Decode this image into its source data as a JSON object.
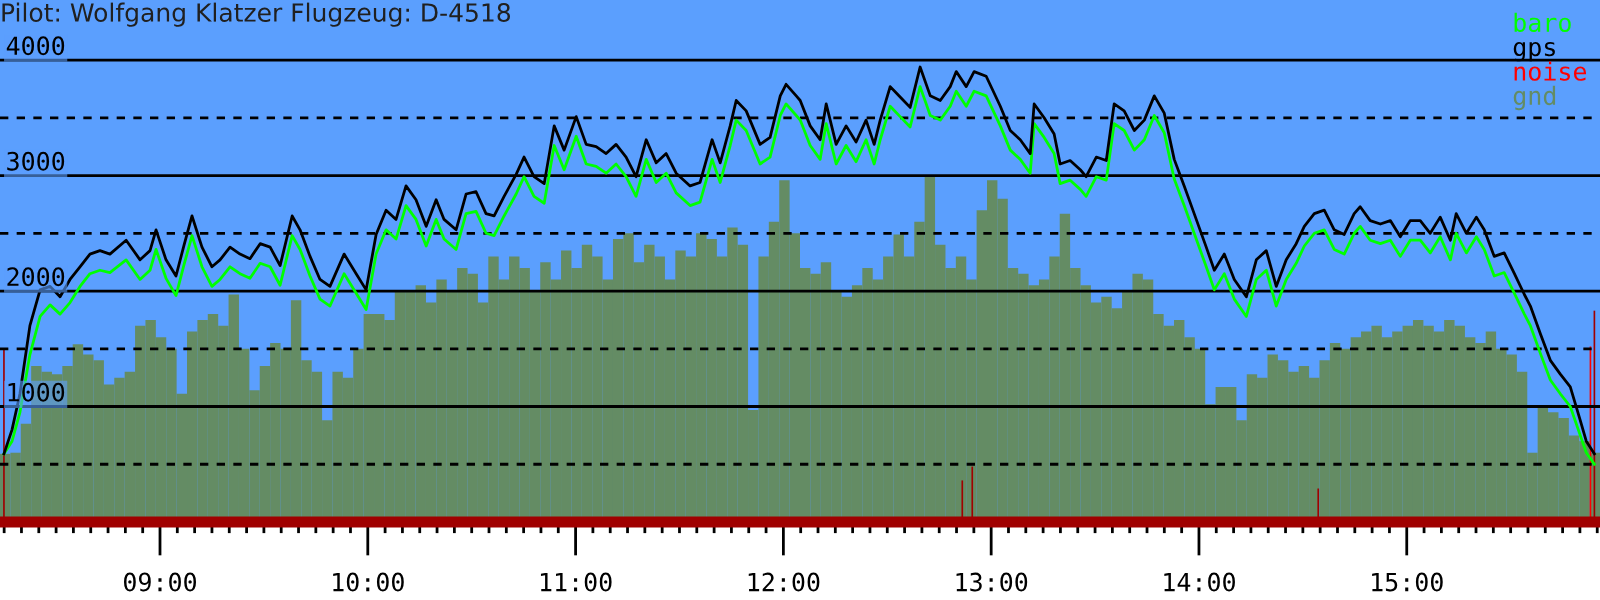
{
  "chart_data": {
    "type": "line",
    "title": "Pilot: Wolfgang Klatzer Flugzeug: D-4518",
    "ylim": [
      0,
      4520
    ],
    "yticks": [
      {
        "value": 500,
        "label": null
      },
      1000,
      {
        "value": 1500,
        "label": null
      },
      2000,
      {
        "value": 2500,
        "label": null
      },
      3000,
      {
        "value": 3500,
        "label": null
      },
      4000
    ],
    "xlim": [
      8.23,
      15.93
    ],
    "xticks": [
      {
        "value": 8.25,
        "label": null
      },
      {
        "value": 8.3333,
        "label": null
      },
      {
        "value": 8.4167,
        "label": null
      },
      {
        "value": 8.5,
        "label": null
      },
      {
        "value": 8.5833,
        "label": null
      },
      {
        "value": 8.6667,
        "label": null
      },
      {
        "value": 8.75,
        "label": null
      },
      {
        "value": 8.8333,
        "label": null
      },
      {
        "value": 8.9167,
        "label": null
      },
      {
        "value": 9,
        "label": "09:00"
      },
      {
        "value": 9.0833,
        "label": null
      },
      {
        "value": 9.1667,
        "label": null
      },
      {
        "value": 9.25,
        "label": null
      },
      {
        "value": 9.3333,
        "label": null
      },
      {
        "value": 9.4167,
        "label": null
      },
      {
        "value": 9.5,
        "label": null
      },
      {
        "value": 9.5833,
        "label": null
      },
      {
        "value": 9.6667,
        "label": null
      },
      {
        "value": 9.75,
        "label": null
      },
      {
        "value": 9.8333,
        "label": null
      },
      {
        "value": 9.9167,
        "label": null
      },
      {
        "value": 10,
        "label": "10:00"
      },
      {
        "value": 10.0833,
        "label": null
      },
      {
        "value": 10.1667,
        "label": null
      },
      {
        "value": 10.25,
        "label": null
      },
      {
        "value": 10.3333,
        "label": null
      },
      {
        "value": 10.4167,
        "label": null
      },
      {
        "value": 10.5,
        "label": null
      },
      {
        "value": 10.5833,
        "label": null
      },
      {
        "value": 10.6667,
        "label": null
      },
      {
        "value": 10.75,
        "label": null
      },
      {
        "value": 10.8333,
        "label": null
      },
      {
        "value": 10.9167,
        "label": null
      },
      {
        "value": 11,
        "label": "11:00"
      },
      {
        "value": 11.0833,
        "label": null
      },
      {
        "value": 11.1667,
        "label": null
      },
      {
        "value": 11.25,
        "label": null
      },
      {
        "value": 11.3333,
        "label": null
      },
      {
        "value": 11.4167,
        "label": null
      },
      {
        "value": 11.5,
        "label": null
      },
      {
        "value": 11.5833,
        "label": null
      },
      {
        "value": 11.6667,
        "label": null
      },
      {
        "value": 11.75,
        "label": null
      },
      {
        "value": 11.8333,
        "label": null
      },
      {
        "value": 11.9167,
        "label": null
      },
      {
        "value": 12,
        "label": "12:00"
      },
      {
        "value": 12.0833,
        "label": null
      },
      {
        "value": 12.1667,
        "label": null
      },
      {
        "value": 12.25,
        "label": null
      },
      {
        "value": 12.3333,
        "label": null
      },
      {
        "value": 12.4167,
        "label": null
      },
      {
        "value": 12.5,
        "label": null
      },
      {
        "value": 12.5833,
        "label": null
      },
      {
        "value": 12.6667,
        "label": null
      },
      {
        "value": 12.75,
        "label": null
      },
      {
        "value": 12.8333,
        "label": null
      },
      {
        "value": 12.9167,
        "label": null
      },
      {
        "value": 13,
        "label": "13:00"
      },
      {
        "value": 13.0833,
        "label": null
      },
      {
        "value": 13.1667,
        "label": null
      },
      {
        "value": 13.25,
        "label": null
      },
      {
        "value": 13.3333,
        "label": null
      },
      {
        "value": 13.4167,
        "label": null
      },
      {
        "value": 13.5,
        "label": null
      },
      {
        "value": 13.5833,
        "label": null
      },
      {
        "value": 13.6667,
        "label": null
      },
      {
        "value": 13.75,
        "label": null
      },
      {
        "value": 13.8333,
        "label": null
      },
      {
        "value": 13.9167,
        "label": null
      },
      {
        "value": 14,
        "label": "14:00"
      },
      {
        "value": 14.0833,
        "label": null
      },
      {
        "value": 14.1667,
        "label": null
      },
      {
        "value": 14.25,
        "label": null
      },
      {
        "value": 14.3333,
        "label": null
      },
      {
        "value": 14.4167,
        "label": null
      },
      {
        "value": 14.5,
        "label": null
      },
      {
        "value": 14.5833,
        "label": null
      },
      {
        "value": 14.6667,
        "label": null
      },
      {
        "value": 14.75,
        "label": null
      },
      {
        "value": 14.8333,
        "label": null
      },
      {
        "value": 14.9167,
        "label": null
      },
      {
        "value": 15,
        "label": "15:00"
      },
      {
        "value": 15.0833,
        "label": null
      },
      {
        "value": 15.1667,
        "label": null
      },
      {
        "value": 15.25,
        "label": null
      },
      {
        "value": 15.3333,
        "label": null
      },
      {
        "value": 15.4167,
        "label": null
      },
      {
        "value": 15.5,
        "label": null
      },
      {
        "value": 15.5833,
        "label": null
      },
      {
        "value": 15.6667,
        "label": null
      },
      {
        "value": 15.75,
        "label": null
      },
      {
        "value": 15.8333,
        "label": null
      },
      {
        "value": 15.9167,
        "label": null
      }
    ],
    "grid": "y",
    "legend": "top right",
    "series": [
      {
        "name": "baro",
        "color": "#00ff00",
        "x": [
          8.249,
          8.288,
          8.326,
          8.374,
          8.423,
          8.471,
          8.519,
          8.567,
          8.615,
          8.663,
          8.711,
          8.759,
          8.837,
          8.904,
          8.952,
          8.981,
          9.029,
          9.077,
          9.116,
          9.154,
          9.202,
          9.25,
          9.289,
          9.337,
          9.385,
          9.433,
          9.482,
          9.53,
          9.578,
          9.636,
          9.674,
          9.722,
          9.77,
          9.818,
          9.886,
          9.944,
          9.992,
          10.04,
          10.088,
          10.136,
          10.184,
          10.232,
          10.281,
          10.329,
          10.367,
          10.425,
          10.473,
          10.521,
          10.569,
          10.608,
          10.656,
          10.714,
          10.752,
          10.8,
          10.849,
          10.897,
          10.945,
          11.003,
          11.051,
          11.099,
          11.147,
          11.195,
          11.243,
          11.291,
          11.34,
          11.388,
          11.436,
          11.484,
          11.551,
          11.599,
          11.657,
          11.696,
          11.744,
          11.773,
          11.821,
          11.888,
          11.936,
          11.985,
          12.013,
          12.062,
          12.081,
          12.129,
          12.177,
          12.206,
          12.254,
          12.302,
          12.35,
          12.398,
          12.437,
          12.466,
          12.514,
          12.562,
          12.61,
          12.658,
          12.707,
          12.755,
          12.803,
          12.832,
          12.88,
          12.918,
          12.976,
          13.044,
          13.092,
          13.14,
          13.188,
          13.207,
          13.255,
          13.303,
          13.332,
          13.38,
          13.429,
          13.457,
          13.506,
          13.554,
          13.592,
          13.64,
          13.689,
          13.737,
          13.785,
          13.833,
          13.881,
          13.929,
          13.977,
          14.035,
          14.074,
          14.122,
          14.17,
          14.228,
          14.276,
          14.324,
          14.372,
          14.42,
          14.468,
          14.507,
          14.555,
          14.603,
          14.651,
          14.699,
          14.747,
          14.776,
          14.824,
          14.873,
          14.921,
          14.969,
          15.017,
          15.065,
          15.113,
          15.161,
          15.21,
          15.238,
          15.287,
          15.335,
          15.373,
          15.421,
          15.469,
          15.518,
          15.566,
          15.595,
          15.643,
          15.691,
          15.739,
          15.787,
          15.835,
          15.864,
          15.903
        ],
        "values": [
          590,
          700,
          950,
          1450,
          1780,
          1880,
          1800,
          1900,
          2040,
          2150,
          2180,
          2160,
          2270,
          2100,
          2180,
          2360,
          2110,
          1960,
          2230,
          2480,
          2210,
          2040,
          2100,
          2210,
          2150,
          2110,
          2240,
          2210,
          2050,
          2480,
          2360,
          2130,
          1930,
          1870,
          2150,
          1980,
          1840,
          2320,
          2530,
          2450,
          2740,
          2620,
          2390,
          2620,
          2450,
          2360,
          2670,
          2690,
          2500,
          2480,
          2650,
          2840,
          2990,
          2820,
          2760,
          3260,
          3050,
          3340,
          3100,
          3080,
          3020,
          3100,
          2990,
          2820,
          3140,
          2940,
          3020,
          2850,
          2740,
          2770,
          3140,
          2940,
          3260,
          3480,
          3390,
          3100,
          3160,
          3520,
          3620,
          3520,
          3480,
          3260,
          3140,
          3450,
          3100,
          3260,
          3120,
          3310,
          3100,
          3310,
          3600,
          3510,
          3420,
          3770,
          3520,
          3480,
          3600,
          3730,
          3600,
          3730,
          3690,
          3430,
          3220,
          3140,
          3020,
          3450,
          3330,
          3190,
          2930,
          2960,
          2880,
          2820,
          2990,
          2960,
          3450,
          3390,
          3220,
          3310,
          3520,
          3370,
          2970,
          2740,
          2500,
          2210,
          2010,
          2150,
          1930,
          1780,
          2100,
          2180,
          1870,
          2100,
          2240,
          2390,
          2500,
          2530,
          2360,
          2320,
          2500,
          2560,
          2440,
          2410,
          2440,
          2300,
          2440,
          2440,
          2330,
          2470,
          2270,
          2500,
          2330,
          2470,
          2360,
          2130,
          2160,
          1980,
          1800,
          1700,
          1460,
          1230,
          1110,
          1000,
          750,
          600,
          500
        ]
      },
      {
        "name": "gps",
        "color": "#000000",
        "x": [
          8.249,
          8.288,
          8.326,
          8.374,
          8.423,
          8.471,
          8.519,
          8.567,
          8.615,
          8.663,
          8.711,
          8.759,
          8.837,
          8.904,
          8.952,
          8.981,
          9.029,
          9.077,
          9.116,
          9.154,
          9.202,
          9.25,
          9.289,
          9.337,
          9.385,
          9.433,
          9.482,
          9.53,
          9.578,
          9.636,
          9.674,
          9.722,
          9.77,
          9.818,
          9.886,
          9.944,
          9.992,
          10.04,
          10.088,
          10.136,
          10.184,
          10.232,
          10.281,
          10.329,
          10.367,
          10.425,
          10.473,
          10.521,
          10.569,
          10.608,
          10.656,
          10.714,
          10.752,
          10.8,
          10.849,
          10.897,
          10.945,
          11.003,
          11.051,
          11.099,
          11.147,
          11.195,
          11.243,
          11.291,
          11.34,
          11.388,
          11.436,
          11.484,
          11.551,
          11.599,
          11.657,
          11.696,
          11.744,
          11.773,
          11.821,
          11.888,
          11.936,
          11.985,
          12.013,
          12.062,
          12.081,
          12.129,
          12.177,
          12.206,
          12.254,
          12.302,
          12.35,
          12.398,
          12.437,
          12.466,
          12.514,
          12.562,
          12.61,
          12.658,
          12.707,
          12.755,
          12.803,
          12.832,
          12.88,
          12.918,
          12.976,
          13.044,
          13.092,
          13.14,
          13.188,
          13.207,
          13.255,
          13.303,
          13.332,
          13.38,
          13.429,
          13.457,
          13.506,
          13.554,
          13.592,
          13.64,
          13.689,
          13.737,
          13.785,
          13.833,
          13.881,
          13.929,
          13.977,
          14.035,
          14.074,
          14.122,
          14.17,
          14.228,
          14.276,
          14.324,
          14.372,
          14.42,
          14.468,
          14.507,
          14.555,
          14.603,
          14.651,
          14.699,
          14.747,
          14.776,
          14.824,
          14.873,
          14.921,
          14.969,
          15.017,
          15.065,
          15.113,
          15.161,
          15.21,
          15.238,
          15.287,
          15.335,
          15.373,
          15.421,
          15.469,
          15.518,
          15.566,
          15.595,
          15.643,
          15.691,
          15.739,
          15.787,
          15.835,
          15.864,
          15.903
        ],
        "values": [
          590,
          800,
          1110,
          1700,
          2010,
          2040,
          1950,
          2100,
          2210,
          2320,
          2350,
          2320,
          2440,
          2270,
          2350,
          2530,
          2270,
          2130,
          2400,
          2650,
          2380,
          2210,
          2270,
          2380,
          2320,
          2280,
          2410,
          2380,
          2220,
          2650,
          2530,
          2300,
          2100,
          2040,
          2320,
          2150,
          2010,
          2490,
          2700,
          2620,
          2910,
          2790,
          2560,
          2790,
          2620,
          2530,
          2840,
          2860,
          2670,
          2650,
          2820,
          3010,
          3160,
          2990,
          2930,
          3430,
          3220,
          3510,
          3270,
          3250,
          3190,
          3270,
          3160,
          2990,
          3310,
          3110,
          3190,
          3020,
          2910,
          2940,
          3310,
          3110,
          3430,
          3650,
          3560,
          3270,
          3330,
          3690,
          3790,
          3690,
          3650,
          3430,
          3310,
          3620,
          3270,
          3430,
          3290,
          3480,
          3270,
          3480,
          3770,
          3680,
          3590,
          3940,
          3690,
          3650,
          3770,
          3900,
          3770,
          3900,
          3860,
          3600,
          3390,
          3310,
          3190,
          3620,
          3500,
          3360,
          3100,
          3130,
          3050,
          2990,
          3160,
          3130,
          3620,
          3560,
          3390,
          3480,
          3690,
          3540,
          3140,
          2910,
          2670,
          2380,
          2180,
          2320,
          2100,
          1950,
          2270,
          2350,
          2040,
          2270,
          2410,
          2560,
          2670,
          2700,
          2530,
          2490,
          2670,
          2730,
          2610,
          2580,
          2610,
          2470,
          2610,
          2610,
          2500,
          2640,
          2440,
          2670,
          2500,
          2640,
          2530,
          2300,
          2330,
          2150,
          1970,
          1870,
          1630,
          1400,
          1280,
          1170,
          880,
          700,
          590
        ]
      },
      {
        "name": "noise",
        "type": "bar",
        "color": "#ff0000",
        "x": [
          8.249,
          12.861,
          12.909,
          14.574,
          15.884,
          15.903
        ],
        "values": [
          1500,
          360,
          480,
          290,
          1520,
          1830
        ],
        "colors": [
          "#a00000",
          "#a00000",
          "#a00000",
          "#a00000",
          "#ff0000",
          "#a00000"
        ]
      },
      {
        "name": "gnd",
        "type": "bar",
        "color": "#648c64",
        "x": [
          8.23,
          8.28,
          8.33,
          8.38,
          8.43,
          8.48,
          8.53,
          8.58,
          8.63,
          8.68,
          8.73,
          8.78,
          8.83,
          8.88,
          8.93,
          8.98,
          9.03,
          9.08,
          9.13,
          9.18,
          9.23,
          9.28,
          9.33,
          9.38,
          9.43,
          9.48,
          9.53,
          9.58,
          9.63,
          9.68,
          9.73,
          9.78,
          9.83,
          9.88,
          9.93,
          9.98,
          10.03,
          10.08,
          10.13,
          10.18,
          10.23,
          10.28,
          10.33,
          10.38,
          10.43,
          10.48,
          10.53,
          10.58,
          10.63,
          10.68,
          10.73,
          10.78,
          10.83,
          10.88,
          10.93,
          10.98,
          11.03,
          11.08,
          11.13,
          11.18,
          11.23,
          11.28,
          11.33,
          11.38,
          11.43,
          11.48,
          11.53,
          11.58,
          11.63,
          11.68,
          11.73,
          11.78,
          11.83,
          11.88,
          11.93,
          11.98,
          12.03,
          12.08,
          12.13,
          12.18,
          12.23,
          12.28,
          12.33,
          12.38,
          12.43,
          12.48,
          12.53,
          12.58,
          12.63,
          12.68,
          12.73,
          12.78,
          12.83,
          12.88,
          12.93,
          12.98,
          13.03,
          13.08,
          13.13,
          13.18,
          13.23,
          13.28,
          13.33,
          13.38,
          13.43,
          13.48,
          13.53,
          13.58,
          13.63,
          13.68,
          13.73,
          13.78,
          13.83,
          13.88,
          13.93,
          13.98,
          14.03,
          14.08,
          14.13,
          14.18,
          14.23,
          14.28,
          14.33,
          14.38,
          14.43,
          14.48,
          14.53,
          14.58,
          14.63,
          14.68,
          14.73,
          14.78,
          14.83,
          14.88,
          14.93,
          14.98,
          15.03,
          15.08,
          15.13,
          15.18,
          15.23,
          15.28,
          15.33,
          15.38,
          15.43,
          15.48,
          15.53,
          15.58,
          15.63,
          15.68,
          15.73,
          15.78,
          15.83,
          15.88
        ],
        "values": [
          590,
          600,
          850,
          1350,
          1300,
          1280,
          1350,
          1540,
          1450,
          1400,
          1190,
          1250,
          1300,
          1700,
          1750,
          1600,
          1500,
          1110,
          1650,
          1750,
          1800,
          1700,
          1970,
          1500,
          1140,
          1350,
          1550,
          1500,
          1920,
          1400,
          1300,
          880,
          1300,
          1250,
          1500,
          1800,
          1800,
          1750,
          2000,
          2000,
          2050,
          1900,
          2100,
          2000,
          2200,
          2150,
          1900,
          2300,
          2100,
          2300,
          2200,
          2000,
          2250,
          2100,
          2350,
          2200,
          2400,
          2300,
          2100,
          2450,
          2500,
          2250,
          2400,
          2300,
          2100,
          2350,
          2300,
          2500,
          2450,
          2300,
          2550,
          2400,
          970,
          2300,
          2600,
          2960,
          2500,
          2200,
          2150,
          2250,
          2000,
          1950,
          2050,
          2200,
          2100,
          2300,
          2490,
          2300,
          2600,
          3000,
          2400,
          2200,
          2300,
          2100,
          2700,
          2960,
          2800,
          2200,
          2150,
          2050,
          2100,
          2300,
          2670,
          2200,
          2050,
          1900,
          1950,
          1850,
          2000,
          2150,
          2100,
          1800,
          1700,
          1750,
          1600,
          1500,
          1020,
          1170,
          1170,
          880,
          1280,
          1250,
          1450,
          1400,
          1300,
          1350,
          1250,
          1400,
          1550,
          1500,
          1600,
          1650,
          1700,
          1600,
          1650,
          1700,
          1750,
          1700,
          1650,
          1750,
          1700,
          1600,
          1550,
          1650,
          1500,
          1450,
          1300,
          600,
          1000,
          950,
          900,
          750,
          700,
          600
        ]
      }
    ]
  }
}
